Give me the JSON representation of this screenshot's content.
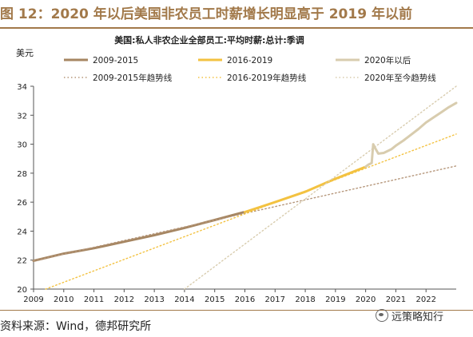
{
  "figure_title": "图 12：2020 年以后美国非农员工时薪增长明显高于 2019 年以前",
  "source_text": "资料来源：Wind，德邦研究所",
  "watermark_text": "远策略知行",
  "chart_data": {
    "type": "line",
    "subtitle": "美国:私人非农企业全部员工:平均时薪:总计:季调",
    "ylabel": "美元",
    "xlim": [
      2009,
      2023
    ],
    "ylim": [
      20,
      34
    ],
    "x_ticks": [
      "2009",
      "2010",
      "2011",
      "2012",
      "2013",
      "2014",
      "2015",
      "2016",
      "2017",
      "2018",
      "2019",
      "2020",
      "2021",
      "2022"
    ],
    "y_ticks": [
      "20",
      "22",
      "24",
      "26",
      "28",
      "30",
      "32",
      "34"
    ],
    "series": [
      {
        "name": "2009-2015",
        "style": "solid",
        "color": "#a68662",
        "points": [
          [
            2009.0,
            21.95
          ],
          [
            2010.0,
            22.45
          ],
          [
            2011.0,
            22.82
          ],
          [
            2012.0,
            23.27
          ],
          [
            2013.0,
            23.72
          ],
          [
            2014.0,
            24.22
          ],
          [
            2015.0,
            24.77
          ],
          [
            2015.95,
            25.3
          ]
        ]
      },
      {
        "name": "2016-2019",
        "style": "solid",
        "color": "#f3c241",
        "points": [
          [
            2016.0,
            25.32
          ],
          [
            2017.0,
            26.0
          ],
          [
            2018.0,
            26.72
          ],
          [
            2019.0,
            27.62
          ],
          [
            2019.95,
            28.4
          ]
        ]
      },
      {
        "name": "2020年以后",
        "style": "solid",
        "color": "#d8ccae",
        "points": [
          [
            2020.0,
            28.45
          ],
          [
            2020.1,
            28.6
          ],
          [
            2020.2,
            28.7
          ],
          [
            2020.25,
            30.0
          ],
          [
            2020.32,
            29.72
          ],
          [
            2020.42,
            29.35
          ],
          [
            2020.6,
            29.4
          ],
          [
            2020.85,
            29.65
          ],
          [
            2021.0,
            29.9
          ],
          [
            2021.25,
            30.25
          ],
          [
            2021.5,
            30.65
          ],
          [
            2021.75,
            31.05
          ],
          [
            2022.0,
            31.5
          ],
          [
            2022.25,
            31.85
          ],
          [
            2022.5,
            32.2
          ],
          [
            2022.75,
            32.55
          ],
          [
            2023.0,
            32.85
          ]
        ]
      },
      {
        "name": "2009-2015年趋势线",
        "style": "dotted",
        "color": "#b5967a",
        "points": [
          [
            2009.0,
            21.95
          ],
          [
            2023.0,
            28.5
          ]
        ]
      },
      {
        "name": "2016-2019年趋势线",
        "style": "dotted",
        "color": "#f3c241",
        "points": [
          [
            2009.4,
            20.0
          ],
          [
            2023.0,
            30.7
          ]
        ]
      },
      {
        "name": "2020年至今趋势线",
        "style": "dotted",
        "color": "#d8ccae",
        "points": [
          [
            2014.0,
            20.0
          ],
          [
            2023.0,
            34.0
          ]
        ]
      }
    ]
  }
}
